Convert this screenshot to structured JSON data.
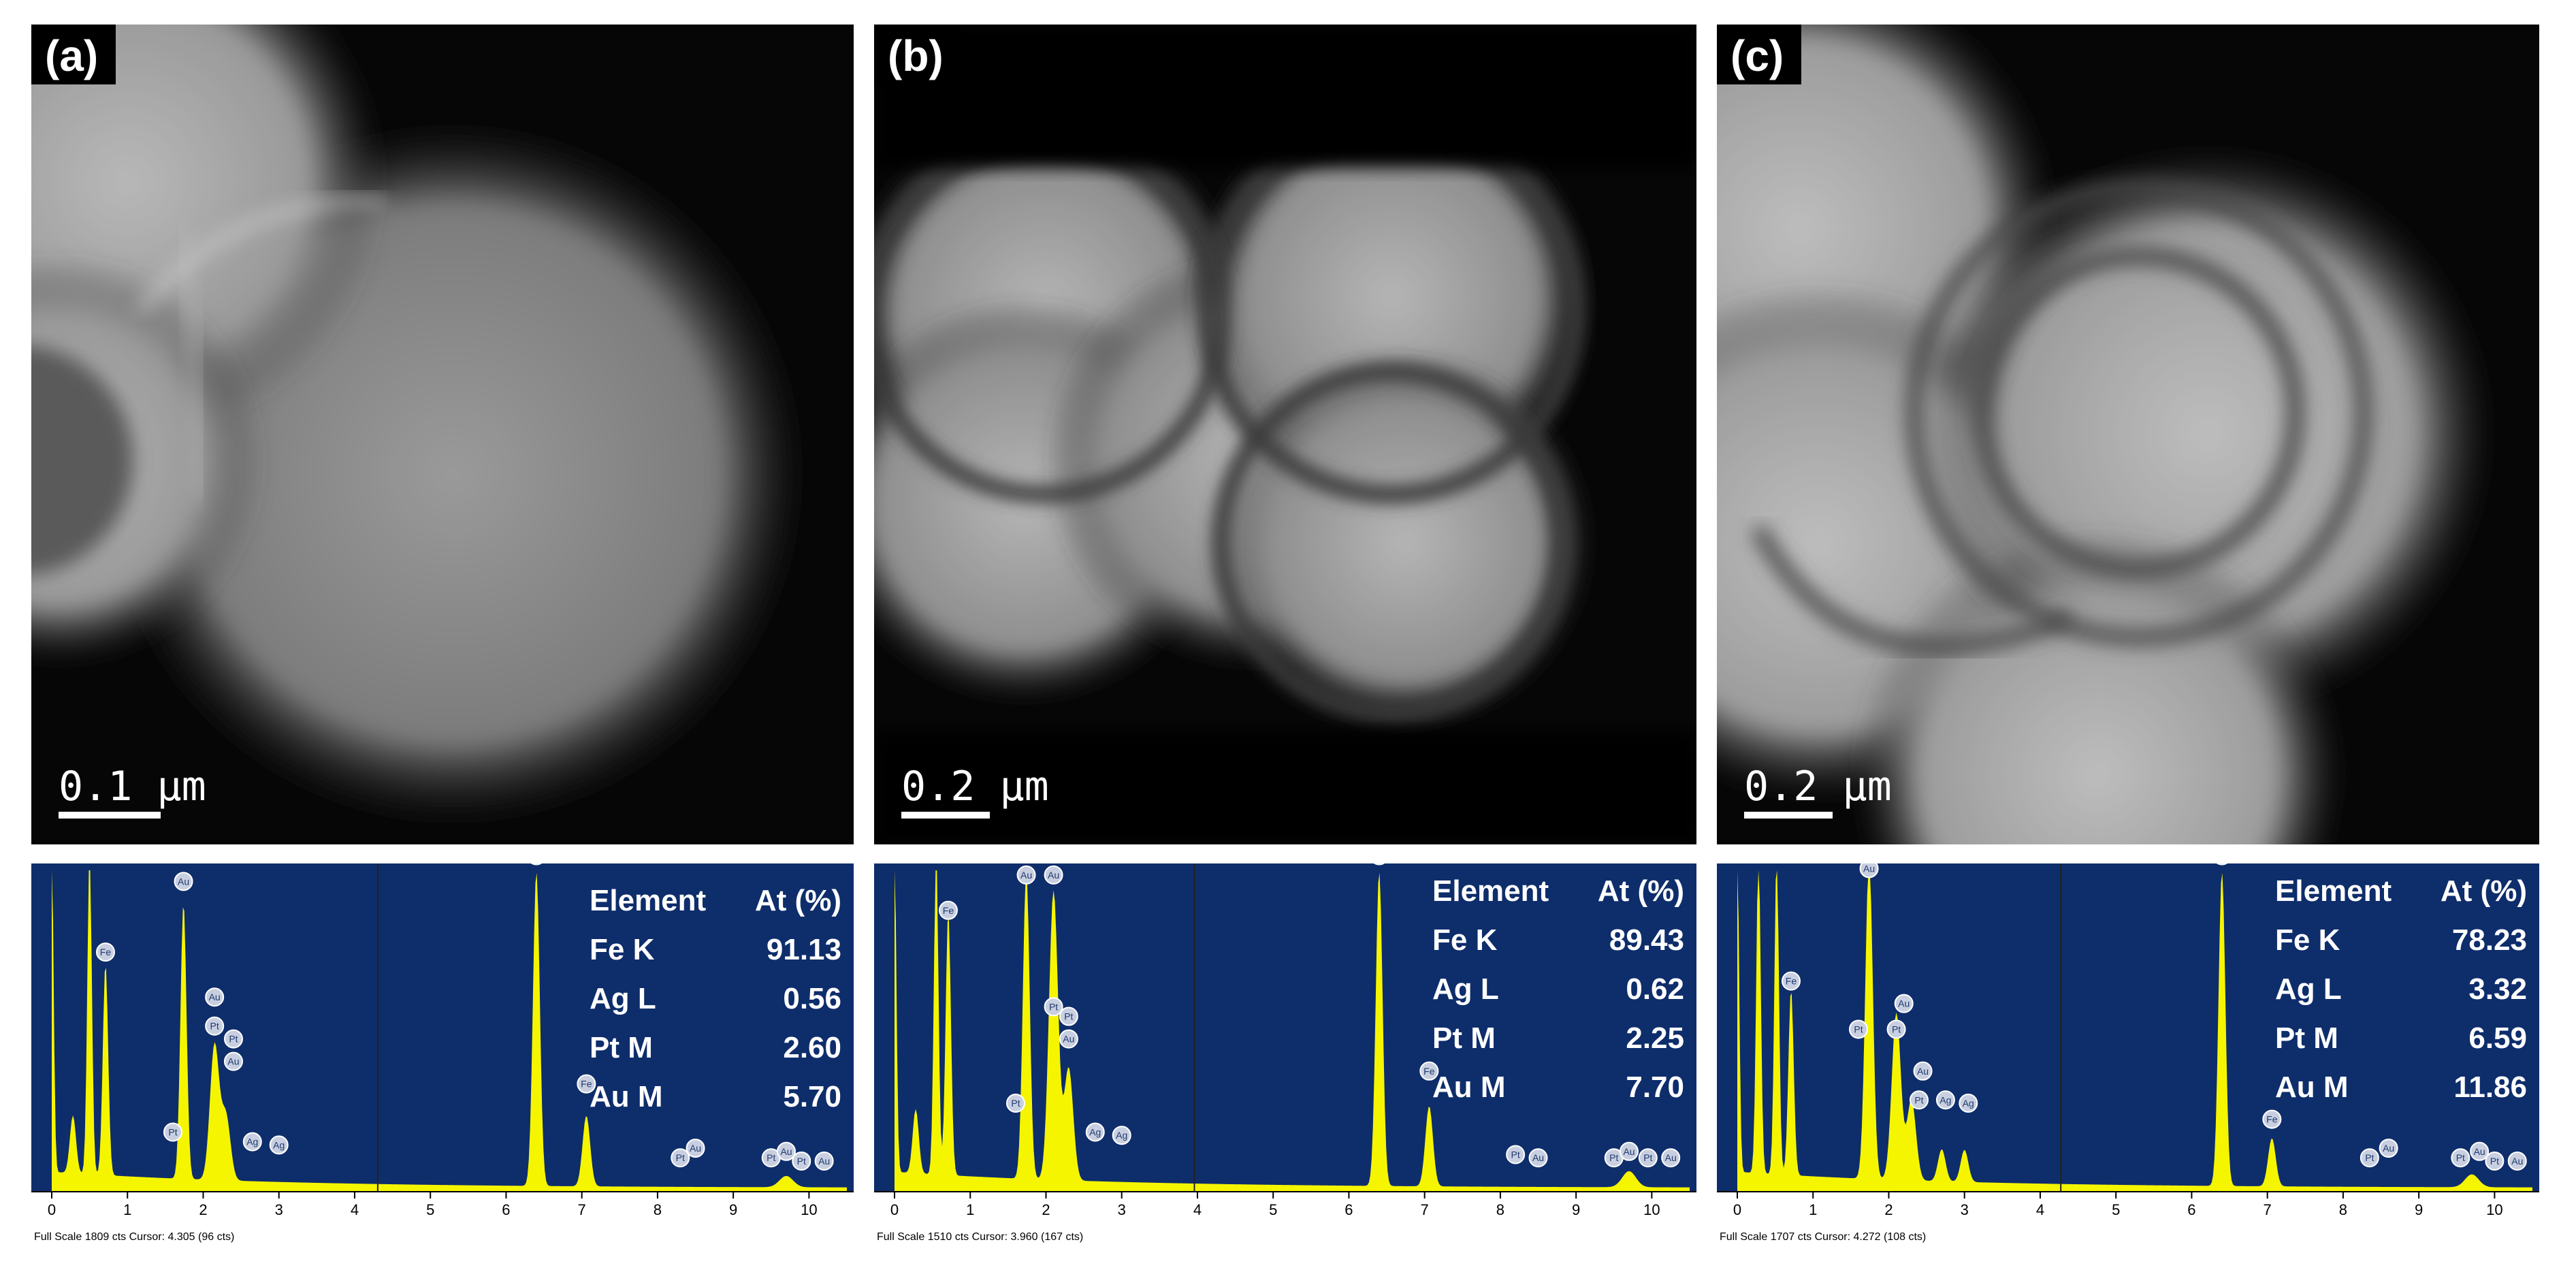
{
  "panels": [
    {
      "label": "(a)",
      "scale_bar": "0.1 µm",
      "table_header": {
        "element": "Element",
        "value": "At (%)"
      },
      "rows": [
        {
          "element": "Fe K",
          "value": "91.13"
        },
        {
          "element": "Ag L",
          "value": "0.56"
        },
        {
          "element": "Pt M",
          "value": "2.60"
        },
        {
          "element": "Au M",
          "value": "5.70"
        }
      ],
      "footer": "Full Scale 1809 cts Cursor: 4.305  (96 cts)"
    },
    {
      "label": "(b)",
      "scale_bar": "0.2 µm",
      "table_header": {
        "element": "Element",
        "value": "At (%)"
      },
      "rows": [
        {
          "element": "Fe K",
          "value": "89.43"
        },
        {
          "element": "Ag L",
          "value": "0.62"
        },
        {
          "element": "Pt M",
          "value": "2.25"
        },
        {
          "element": "Au M",
          "value": "7.70"
        }
      ],
      "footer": "Full Scale 1510 cts Cursor: 3.960  (167 cts)"
    },
    {
      "label": "(c)",
      "scale_bar": "0.2 µm",
      "table_header": {
        "element": "Element",
        "value": "At (%)"
      },
      "rows": [
        {
          "element": "Fe K",
          "value": "78.23"
        },
        {
          "element": "Ag L",
          "value": "3.32"
        },
        {
          "element": "Pt M",
          "value": "6.59"
        },
        {
          "element": "Au M",
          "value": "11.86"
        }
      ],
      "footer": "Full Scale 1707 cts Cursor: 4.272  (108 cts)"
    }
  ],
  "spectrum_axis": {
    "ticks": [
      "0",
      "1",
      "2",
      "3",
      "4",
      "5",
      "6",
      "7",
      "8",
      "9",
      "10"
    ],
    "xlim": [
      0,
      10.5
    ]
  },
  "colors": {
    "spectrum_bg": "#0e2d6b",
    "spectrum_fill": "#f5f500",
    "cursor_line": "#222222"
  },
  "spectra": [
    {
      "cursor_keV": 4.305,
      "peaks": [
        {
          "keV": 0.0,
          "height": 1.0,
          "width": 0.025
        },
        {
          "keV": 0.28,
          "height": 0.18,
          "width": 0.04
        },
        {
          "keV": 0.5,
          "height": 1.0,
          "width": 0.03
        },
        {
          "keV": 0.71,
          "height": 0.66,
          "width": 0.035
        },
        {
          "keV": 1.74,
          "height": 0.86,
          "width": 0.04
        },
        {
          "keV": 2.15,
          "height": 0.42,
          "width": 0.06
        },
        {
          "keV": 2.3,
          "height": 0.2,
          "width": 0.06
        },
        {
          "keV": 6.4,
          "height": 0.98,
          "width": 0.045
        },
        {
          "keV": 7.06,
          "height": 0.22,
          "width": 0.05
        },
        {
          "keV": 9.7,
          "height": 0.035,
          "width": 0.09
        }
      ],
      "labels": [
        {
          "keV": 1.74,
          "height": 0.94,
          "text": "Au"
        },
        {
          "keV": 0.71,
          "height": 0.72,
          "text": "Fe"
        },
        {
          "keV": 2.15,
          "height": 0.58,
          "text": "Au"
        },
        {
          "keV": 2.15,
          "height": 0.49,
          "text": "Pt"
        },
        {
          "keV": 2.4,
          "height": 0.45,
          "text": "Pt"
        },
        {
          "keV": 2.4,
          "height": 0.38,
          "text": "Au"
        },
        {
          "keV": 1.6,
          "height": 0.16,
          "text": "Pt"
        },
        {
          "keV": 2.65,
          "height": 0.13,
          "text": "Ag"
        },
        {
          "keV": 3.0,
          "height": 0.12,
          "text": "Ag"
        },
        {
          "keV": 6.4,
          "height": 1.02,
          "text": "Fe"
        },
        {
          "keV": 7.06,
          "height": 0.31,
          "text": "Fe"
        },
        {
          "keV": 8.3,
          "height": 0.08,
          "text": "Pt"
        },
        {
          "keV": 8.5,
          "height": 0.11,
          "text": "Au"
        },
        {
          "keV": 9.5,
          "height": 0.08,
          "text": "Pt"
        },
        {
          "keV": 9.7,
          "height": 0.1,
          "text": "Au"
        },
        {
          "keV": 9.9,
          "height": 0.07,
          "text": "Pt"
        },
        {
          "keV": 10.2,
          "height": 0.07,
          "text": "Au"
        }
      ]
    },
    {
      "cursor_keV": 3.96,
      "peaks": [
        {
          "keV": 0.0,
          "height": 1.0,
          "width": 0.025
        },
        {
          "keV": 0.28,
          "height": 0.2,
          "width": 0.04
        },
        {
          "keV": 0.55,
          "height": 1.0,
          "width": 0.03
        },
        {
          "keV": 0.71,
          "height": 0.82,
          "width": 0.035
        },
        {
          "keV": 1.74,
          "height": 0.96,
          "width": 0.045
        },
        {
          "keV": 2.1,
          "height": 0.9,
          "width": 0.06
        },
        {
          "keV": 2.3,
          "height": 0.35,
          "width": 0.06
        },
        {
          "keV": 6.4,
          "height": 0.98,
          "width": 0.045
        },
        {
          "keV": 7.06,
          "height": 0.25,
          "width": 0.05
        },
        {
          "keV": 9.7,
          "height": 0.05,
          "width": 0.09
        }
      ],
      "labels": [
        {
          "keV": 1.74,
          "height": 0.96,
          "text": "Au"
        },
        {
          "keV": 2.1,
          "height": 0.96,
          "text": "Au"
        },
        {
          "keV": 0.71,
          "height": 0.85,
          "text": "Fe"
        },
        {
          "keV": 2.1,
          "height": 0.55,
          "text": "Pt"
        },
        {
          "keV": 2.3,
          "height": 0.52,
          "text": "Pt"
        },
        {
          "keV": 2.3,
          "height": 0.45,
          "text": "Au"
        },
        {
          "keV": 1.6,
          "height": 0.25,
          "text": "Pt"
        },
        {
          "keV": 2.65,
          "height": 0.16,
          "text": "Ag"
        },
        {
          "keV": 3.0,
          "height": 0.15,
          "text": "Ag"
        },
        {
          "keV": 6.4,
          "height": 1.02,
          "text": "Fe"
        },
        {
          "keV": 7.06,
          "height": 0.35,
          "text": "Fe"
        },
        {
          "keV": 8.2,
          "height": 0.09,
          "text": "Pt"
        },
        {
          "keV": 8.5,
          "height": 0.08,
          "text": "Au"
        },
        {
          "keV": 9.5,
          "height": 0.08,
          "text": "Pt"
        },
        {
          "keV": 9.7,
          "height": 0.1,
          "text": "Au"
        },
        {
          "keV": 9.95,
          "height": 0.08,
          "text": "Pt"
        },
        {
          "keV": 10.25,
          "height": 0.08,
          "text": "Au"
        }
      ]
    },
    {
      "cursor_keV": 4.272,
      "peaks": [
        {
          "keV": 0.0,
          "height": 1.0,
          "width": 0.025
        },
        {
          "keV": 0.28,
          "height": 1.0,
          "width": 0.03
        },
        {
          "keV": 0.52,
          "height": 1.0,
          "width": 0.03
        },
        {
          "keV": 0.71,
          "height": 0.58,
          "width": 0.035
        },
        {
          "keV": 1.74,
          "height": 1.0,
          "width": 0.05
        },
        {
          "keV": 2.1,
          "height": 0.52,
          "width": 0.06
        },
        {
          "keV": 2.3,
          "height": 0.25,
          "width": 0.06
        },
        {
          "keV": 2.7,
          "height": 0.1,
          "width": 0.05
        },
        {
          "keV": 3.0,
          "height": 0.1,
          "width": 0.05
        },
        {
          "keV": 6.4,
          "height": 0.98,
          "width": 0.045
        },
        {
          "keV": 7.06,
          "height": 0.15,
          "width": 0.05
        },
        {
          "keV": 9.7,
          "height": 0.04,
          "width": 0.09
        }
      ],
      "labels": [
        {
          "keV": 1.74,
          "height": 0.98,
          "text": "Au"
        },
        {
          "keV": 0.71,
          "height": 0.63,
          "text": "Fe"
        },
        {
          "keV": 2.2,
          "height": 0.56,
          "text": "Au"
        },
        {
          "keV": 2.1,
          "height": 0.48,
          "text": "Pt"
        },
        {
          "keV": 1.6,
          "height": 0.48,
          "text": "Pt"
        },
        {
          "keV": 2.45,
          "height": 0.35,
          "text": "Au"
        },
        {
          "keV": 2.4,
          "height": 0.26,
          "text": "Pt"
        },
        {
          "keV": 2.75,
          "height": 0.26,
          "text": "Ag"
        },
        {
          "keV": 3.05,
          "height": 0.25,
          "text": "Ag"
        },
        {
          "keV": 6.4,
          "height": 1.02,
          "text": "Fe"
        },
        {
          "keV": 7.06,
          "height": 0.2,
          "text": "Fe"
        },
        {
          "keV": 8.35,
          "height": 0.08,
          "text": "Pt"
        },
        {
          "keV": 8.6,
          "height": 0.11,
          "text": "Au"
        },
        {
          "keV": 9.55,
          "height": 0.08,
          "text": "Pt"
        },
        {
          "keV": 9.8,
          "height": 0.1,
          "text": "Au"
        },
        {
          "keV": 10.0,
          "height": 0.07,
          "text": "Pt"
        },
        {
          "keV": 10.3,
          "height": 0.07,
          "text": "Au"
        }
      ]
    }
  ]
}
